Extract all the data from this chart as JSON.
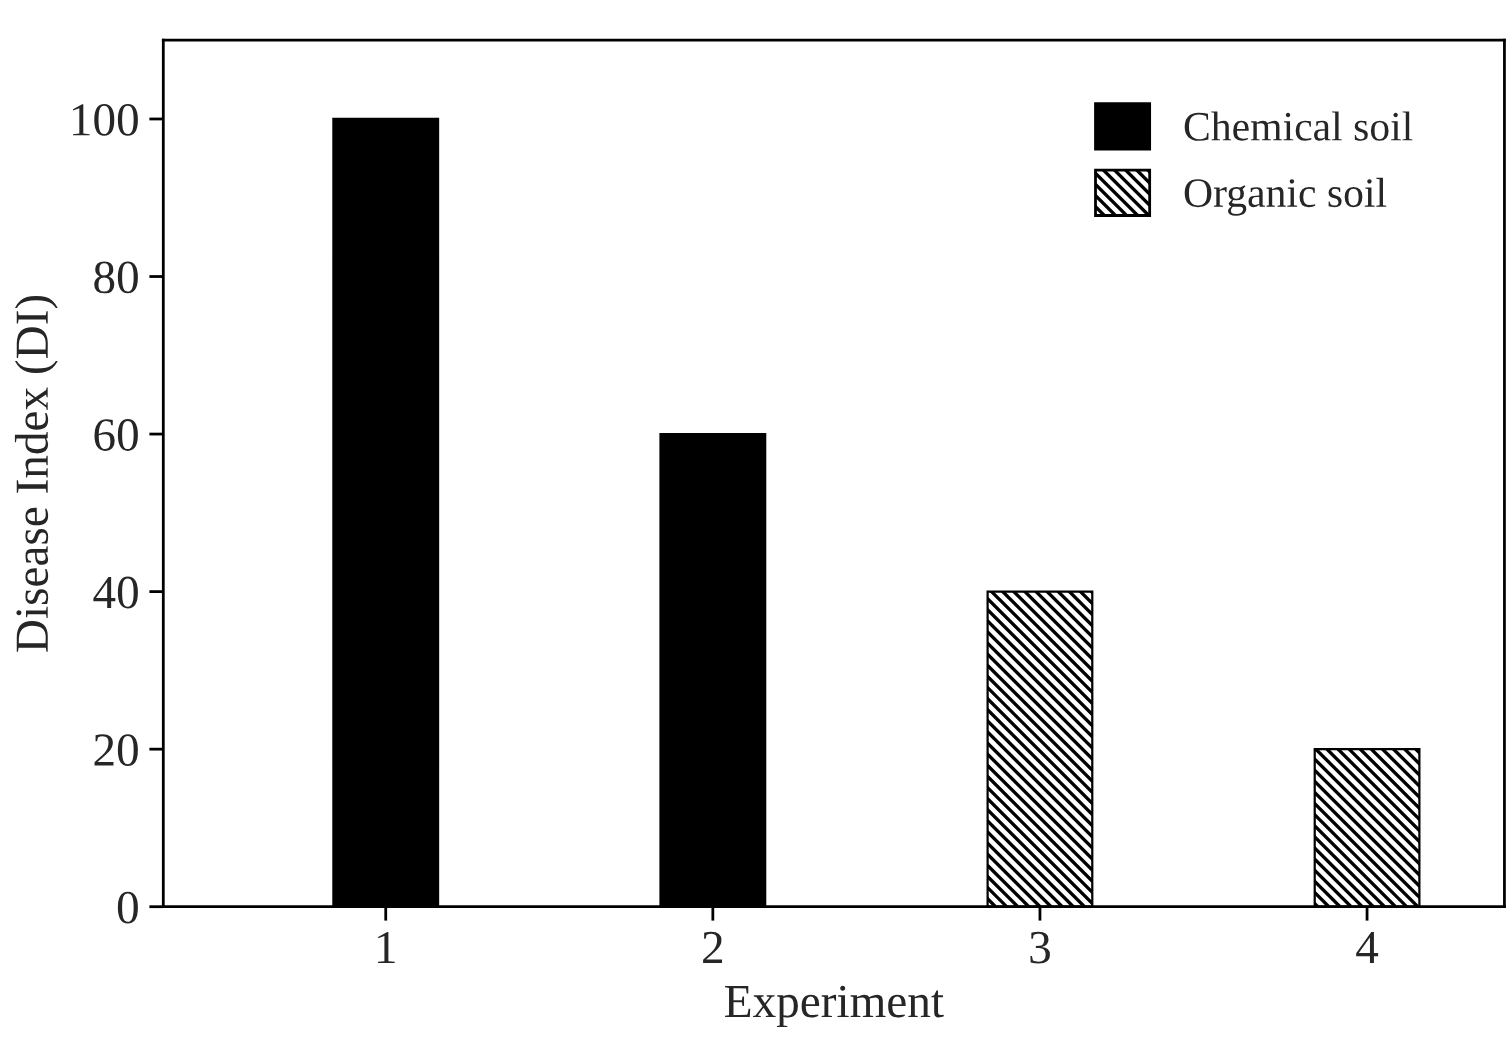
{
  "chart_data": {
    "type": "bar",
    "xlabel": "Experiment",
    "ylabel": "Disease Index (DI)",
    "categories": [
      "1",
      "2",
      "3",
      "4"
    ],
    "series": [
      {
        "name": "Chemical soil",
        "color": "#000000",
        "values": [
          100,
          60,
          null,
          null
        ]
      },
      {
        "name": "Organic soil",
        "color": "#000000",
        "values": [
          null,
          null,
          40,
          20
        ]
      }
    ],
    "ylim": [
      0,
      110
    ],
    "yticks": [
      0,
      20,
      40,
      60,
      80,
      100
    ],
    "grid": false,
    "legend": "top right"
  }
}
